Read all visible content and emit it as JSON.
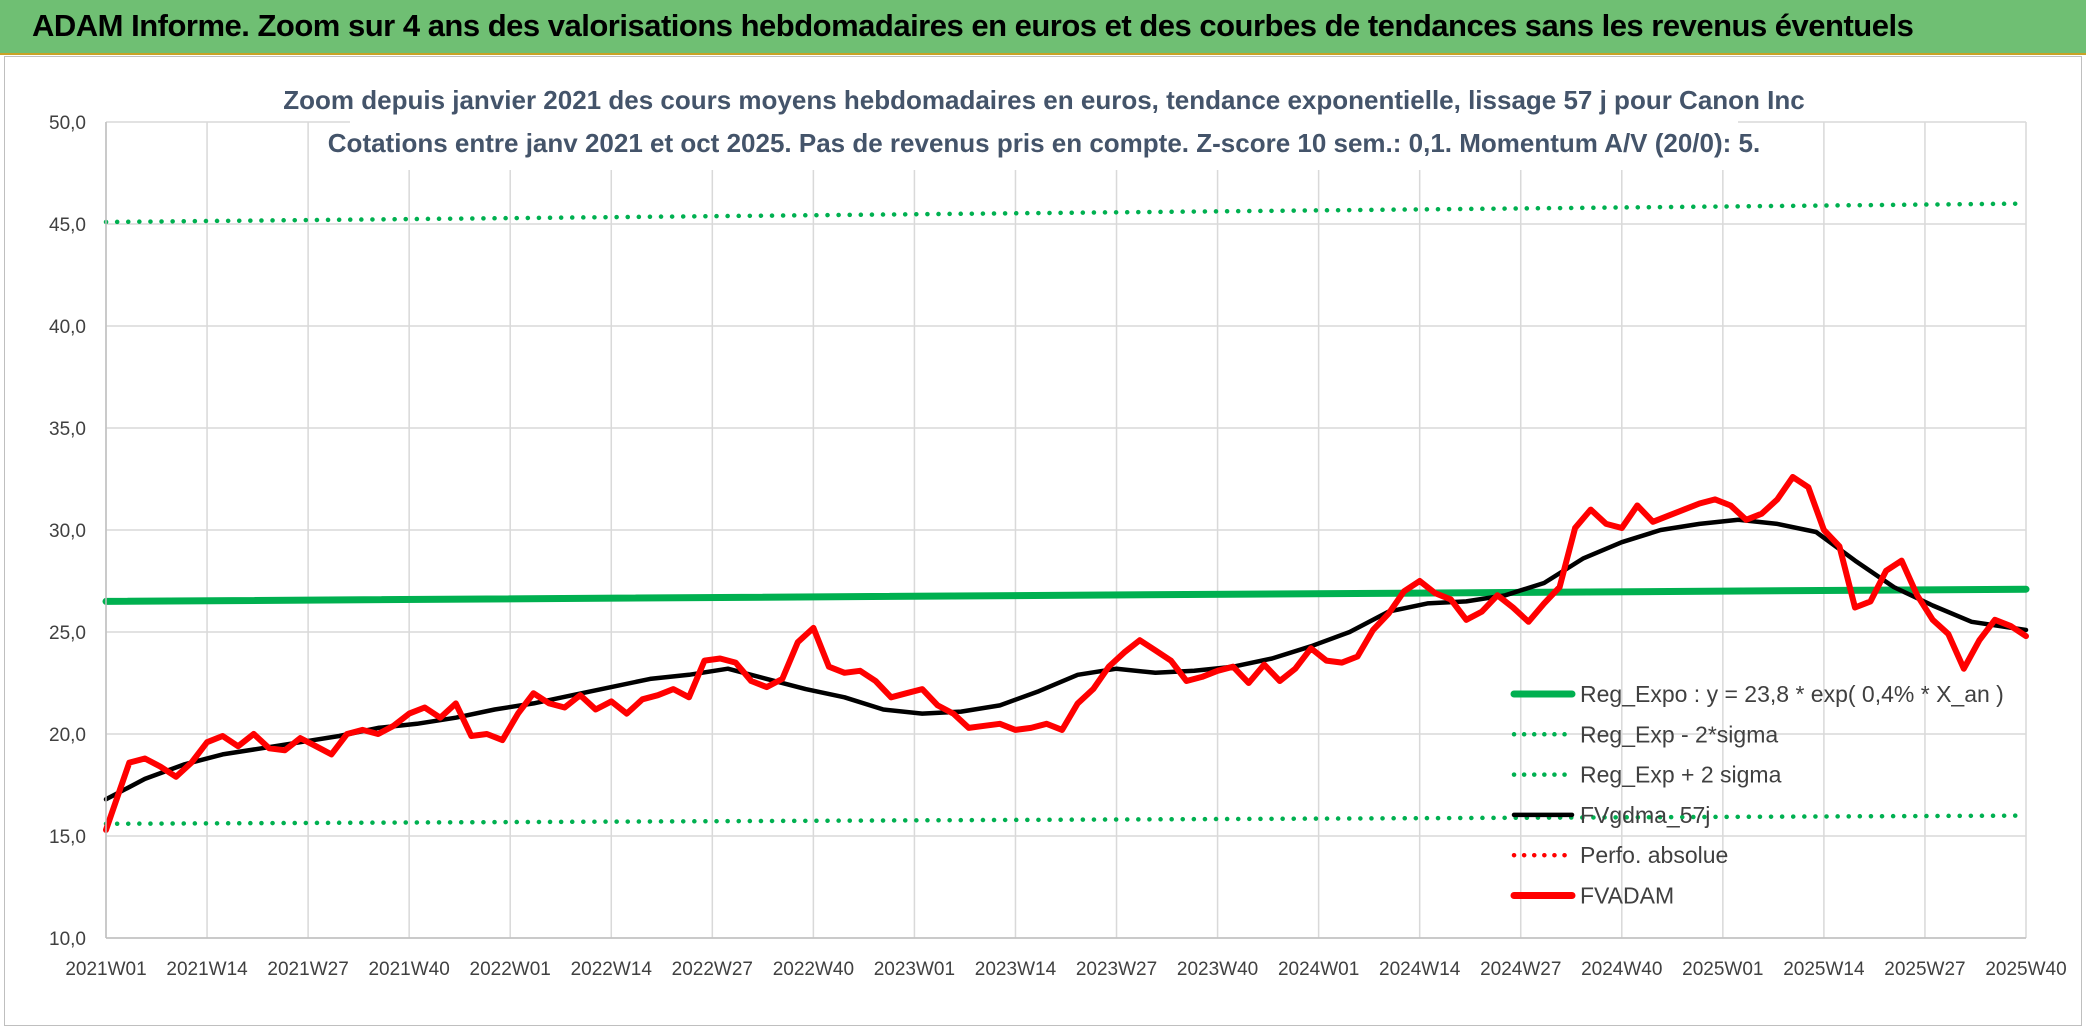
{
  "banner": {
    "title": "ADAM Informe. Zoom sur 4 ans des valorisations hebdomadaires en euros et des courbes de tendances sans les revenus éventuels"
  },
  "colors": {
    "banner_bg": "#6fbf73",
    "reg_expo": "#00b050",
    "sigma_bands": "#00b050",
    "smoothed": "#000000",
    "perfo": "#ff0000",
    "fvadam": "#ff0000",
    "grid": "#d9d9d9",
    "title": "#44546a"
  },
  "chart_data": {
    "type": "line",
    "title_line1": "Zoom depuis janvier 2021 des cours moyens hebdomadaires en euros, tendance exponentielle, lissage 57 j pour Canon Inc",
    "title_line2": "Cotations entre janv 2021 et oct 2025. Pas de revenus pris en compte. Z-score 10 sem.: 0,1. Momentum A/V (20/0): 5.",
    "xlabel": "",
    "ylabel": "",
    "ylim": [
      10,
      50
    ],
    "y_ticks": [
      "10,0",
      "15,0",
      "20,0",
      "25,0",
      "30,0",
      "35,0",
      "40,0",
      "45,0",
      "50,0"
    ],
    "x_ticks": [
      "2021W01",
      "2021W14",
      "2021W27",
      "2021W40",
      "2022W01",
      "2022W14",
      "2022W27",
      "2022W40",
      "2023W01",
      "2023W14",
      "2023W27",
      "2023W40",
      "2024W01",
      "2024W14",
      "2024W27",
      "2024W40",
      "2025W01",
      "2025W14",
      "2025W27",
      "2025W40"
    ],
    "grid": true,
    "legend_position": "right",
    "x_unit": "weeks since 2021W01",
    "x_max": 247,
    "legend": [
      {
        "key": "reg_expo",
        "label": "Reg_Expo : y = 23,8 * exp( 0,4% *  X_an )",
        "style": "solid-thick",
        "color": "#00b050"
      },
      {
        "key": "reg_minus",
        "label": "Reg_Exp - 2*sigma",
        "style": "dotted",
        "color": "#00b050"
      },
      {
        "key": "reg_plus",
        "label": "Reg_Exp + 2 sigma",
        "style": "dotted",
        "color": "#00b050"
      },
      {
        "key": "fvgdma",
        "label": "FVgdma_57j",
        "style": "solid",
        "color": "#000000"
      },
      {
        "key": "perfo",
        "label": "Perfo. absolue",
        "style": "dotted",
        "color": "#ff0000"
      },
      {
        "key": "fvadam",
        "label": "FVADAM",
        "style": "solid-thick",
        "color": "#ff0000"
      }
    ],
    "series": [
      {
        "name": "Reg_Expo",
        "x": [
          0,
          247
        ],
        "values": [
          26.5,
          27.1
        ]
      },
      {
        "name": "Reg_Exp - 2*sigma",
        "x": [
          0,
          247
        ],
        "values": [
          15.6,
          16.0
        ]
      },
      {
        "name": "Reg_Exp + 2 sigma",
        "x": [
          0,
          247
        ],
        "values": [
          45.1,
          46.0
        ]
      },
      {
        "name": "FVgdma_57j",
        "x": [
          0,
          5,
          10,
          15,
          20,
          25,
          30,
          35,
          40,
          45,
          50,
          55,
          60,
          65,
          70,
          75,
          80,
          85,
          90,
          95,
          100,
          105,
          110,
          115,
          120,
          125,
          130,
          135,
          140,
          145,
          150,
          155,
          160,
          165,
          170,
          175,
          180,
          185,
          190,
          195,
          200,
          205,
          210,
          215,
          220,
          225,
          230,
          235,
          240,
          247
        ],
        "values": [
          16.8,
          17.8,
          18.5,
          19.0,
          19.3,
          19.6,
          19.9,
          20.3,
          20.5,
          20.8,
          21.2,
          21.5,
          21.9,
          22.3,
          22.7,
          22.9,
          23.2,
          22.7,
          22.2,
          21.8,
          21.2,
          21.0,
          21.1,
          21.4,
          22.1,
          22.9,
          23.2,
          23.0,
          23.1,
          23.3,
          23.7,
          24.3,
          25.0,
          26.0,
          26.4,
          26.5,
          26.8,
          27.4,
          28.6,
          29.4,
          30.0,
          30.3,
          30.5,
          30.3,
          29.9,
          28.5,
          27.2,
          26.3,
          25.5,
          25.1
        ]
      },
      {
        "name": "FVADAM",
        "x": [
          0,
          3,
          5,
          7,
          9,
          11,
          13,
          15,
          17,
          19,
          21,
          23,
          25,
          27,
          29,
          31,
          33,
          35,
          37,
          39,
          41,
          43,
          45,
          47,
          49,
          51,
          53,
          55,
          57,
          59,
          61,
          63,
          65,
          67,
          69,
          71,
          73,
          75,
          77,
          79,
          81,
          83,
          85,
          87,
          89,
          91,
          93,
          95,
          97,
          99,
          101,
          103,
          105,
          107,
          109,
          111,
          113,
          115,
          117,
          119,
          121,
          123,
          125,
          127,
          129,
          131,
          133,
          135,
          137,
          139,
          141,
          143,
          145,
          147,
          149,
          151,
          153,
          155,
          157,
          159,
          161,
          163,
          165,
          167,
          169,
          171,
          173,
          175,
          177,
          179,
          181,
          183,
          185,
          187,
          189,
          191,
          193,
          195,
          197,
          199,
          201,
          203,
          205,
          207,
          209,
          211,
          213,
          215,
          217,
          219,
          221,
          223,
          225,
          227,
          229,
          231,
          233,
          235,
          237,
          239,
          241,
          243,
          245,
          247
        ],
        "values": [
          15.3,
          18.6,
          18.8,
          18.4,
          17.9,
          18.6,
          19.6,
          19.9,
          19.4,
          20.0,
          19.3,
          19.2,
          19.8,
          19.4,
          19.0,
          20.0,
          20.2,
          20.0,
          20.4,
          21.0,
          21.3,
          20.8,
          21.5,
          19.9,
          20.0,
          19.7,
          21.0,
          22.0,
          21.5,
          21.3,
          21.9,
          21.2,
          21.6,
          21.0,
          21.7,
          21.9,
          22.2,
          21.8,
          23.6,
          23.7,
          23.5,
          22.6,
          22.3,
          22.7,
          24.5,
          25.2,
          23.3,
          23.0,
          23.1,
          22.6,
          21.8,
          22.0,
          22.2,
          21.4,
          21.0,
          20.3,
          20.4,
          20.5,
          20.2,
          20.3,
          20.5,
          20.2,
          21.5,
          22.2,
          23.3,
          24.0,
          24.6,
          24.1,
          23.6,
          22.6,
          22.8,
          23.1,
          23.3,
          22.5,
          23.4,
          22.6,
          23.2,
          24.2,
          23.6,
          23.5,
          23.8,
          25.1,
          25.9,
          27.0,
          27.5,
          26.9,
          26.6,
          25.6,
          26.0,
          26.8,
          26.2,
          25.5,
          26.4,
          27.2,
          30.1,
          31.0,
          30.3,
          30.1,
          31.2,
          30.4,
          30.7,
          31.0,
          31.3,
          31.5,
          31.2,
          30.5,
          30.8,
          31.5,
          32.6,
          32.1,
          30.0,
          29.2,
          26.2,
          26.5,
          28.0,
          28.5,
          26.8,
          25.6,
          24.9,
          23.2,
          24.6,
          25.6,
          25.3,
          24.8
        ]
      }
    ]
  }
}
